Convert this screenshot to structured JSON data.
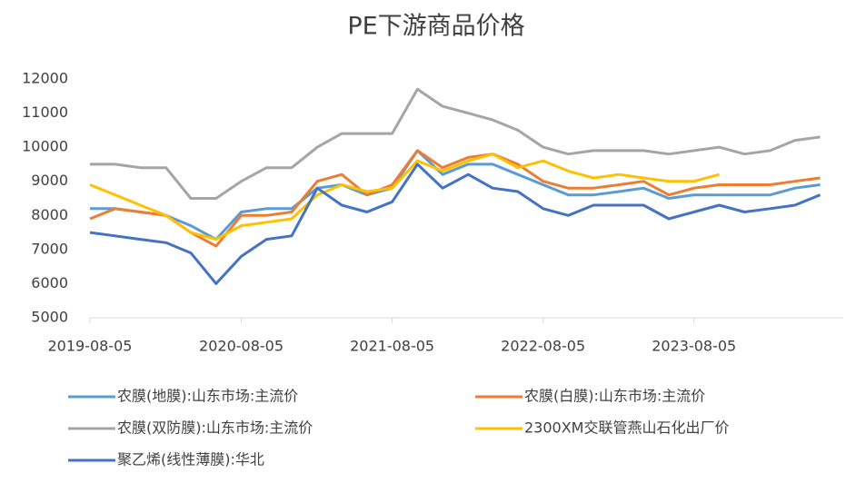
{
  "chart_data": {
    "type": "line",
    "title": "PE下游商品价格",
    "x": [
      "2019-08-05",
      "2019-10-05",
      "2019-12-05",
      "2020-02-05",
      "2020-04-05",
      "2020-06-05",
      "2020-08-05",
      "2020-10-05",
      "2020-12-05",
      "2021-02-05",
      "2021-04-05",
      "2021-06-05",
      "2021-08-05",
      "2021-10-05",
      "2021-12-05",
      "2022-02-05",
      "2022-04-05",
      "2022-06-05",
      "2022-08-05",
      "2022-10-05",
      "2022-12-05",
      "2023-02-05",
      "2023-04-05",
      "2023-06-05",
      "2023-08-05",
      "2023-10-05",
      "2023-12-05",
      "2024-02-05",
      "2024-04-05",
      "2024-06-05"
    ],
    "series": [
      {
        "name": "农膜(地膜):山东市场:主流价",
        "color": "#5B9BD5",
        "values": [
          8200,
          8200,
          8100,
          8000,
          7700,
          7300,
          8100,
          8200,
          8200,
          8800,
          8900,
          8600,
          8800,
          9900,
          9200,
          9500,
          9500,
          9200,
          8900,
          8600,
          8600,
          8700,
          8800,
          8500,
          8600,
          8600,
          8600,
          8600,
          8800,
          8900
        ]
      },
      {
        "name": "农膜(白膜):山东市场:主流价",
        "color": "#ED7D31",
        "values": [
          7900,
          8200,
          8100,
          8000,
          7500,
          7100,
          8000,
          8000,
          8100,
          9000,
          9200,
          8600,
          8900,
          9900,
          9400,
          9700,
          9800,
          9500,
          9000,
          8800,
          8800,
          8900,
          9000,
          8600,
          8800,
          8900,
          8900,
          8900,
          9000,
          9100
        ]
      },
      {
        "name": "农膜(双防膜):山东市场:主流价",
        "color": "#A5A5A5",
        "values": [
          9500,
          9500,
          9400,
          9400,
          8500,
          8500,
          9000,
          9400,
          9400,
          10000,
          10400,
          10400,
          10400,
          11700,
          11200,
          11000,
          10800,
          10500,
          10000,
          9800,
          9900,
          9900,
          9900,
          9800,
          9900,
          10000,
          9800,
          9900,
          10200,
          10300
        ]
      },
      {
        "name": "2300XM交联管燕山石化出厂价",
        "color": "#FFC000",
        "values": [
          8900,
          8600,
          8300,
          8000,
          7500,
          7300,
          7700,
          7800,
          7900,
          8600,
          8900,
          8700,
          8800,
          9600,
          9300,
          9600,
          9800,
          9400,
          9600,
          9300,
          9100,
          9200,
          9100,
          9000,
          9000,
          9200,
          null,
          null,
          null,
          null
        ]
      },
      {
        "name": "聚乙烯(线性薄膜):华北",
        "color": "#4472C4",
        "values": [
          7500,
          7400,
          7300,
          7200,
          6900,
          6000,
          6800,
          7300,
          7400,
          8800,
          8300,
          8100,
          8400,
          9500,
          8800,
          9200,
          8800,
          8700,
          8200,
          8000,
          8300,
          8300,
          8300,
          7900,
          8100,
          8300,
          8100,
          8200,
          8300,
          8600
        ]
      }
    ],
    "xlim": [
      "2019-08-05",
      "2024-07-31"
    ],
    "xticks": [
      "2019-08-05",
      "2020-08-05",
      "2021-08-05",
      "2022-08-05",
      "2023-08-05"
    ],
    "ylim": [
      5000,
      12000
    ],
    "yticks": [
      5000,
      6000,
      7000,
      8000,
      9000,
      10000,
      11000,
      12000
    ],
    "grid": false,
    "legend": "bottom"
  }
}
